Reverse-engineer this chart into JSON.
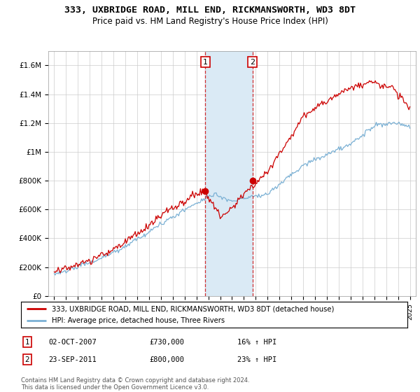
{
  "title": "333, UXBRIDGE ROAD, MILL END, RICKMANSWORTH, WD3 8DT",
  "subtitle": "Price paid vs. HM Land Registry's House Price Index (HPI)",
  "legend_line1": "333, UXBRIDGE ROAD, MILL END, RICKMANSWORTH, WD3 8DT (detached house)",
  "legend_line2": "HPI: Average price, detached house, Three Rivers",
  "sale1_date": "02-OCT-2007",
  "sale1_price": "£730,000",
  "sale1_hpi": "16% ↑ HPI",
  "sale2_date": "23-SEP-2011",
  "sale2_price": "£800,000",
  "sale2_hpi": "23% ↑ HPI",
  "footnote": "Contains HM Land Registry data © Crown copyright and database right 2024.\nThis data is licensed under the Open Government Licence v3.0.",
  "price_color": "#cc0000",
  "hpi_color": "#7ab0d4",
  "highlight_color": "#daeaf5",
  "sale1_x": 2007.75,
  "sale2_x": 2011.72,
  "ylim_bottom": 0,
  "ylim_top": 1700000,
  "xlim_left": 1994.5,
  "xlim_right": 2025.5,
  "yticks": [
    0,
    200000,
    400000,
    600000,
    800000,
    1000000,
    1200000,
    1400000,
    1600000
  ],
  "ylabels": [
    "£0",
    "£200K",
    "£400K",
    "£600K",
    "£800K",
    "£1M",
    "£1.2M",
    "£1.4M",
    "£1.6M"
  ]
}
